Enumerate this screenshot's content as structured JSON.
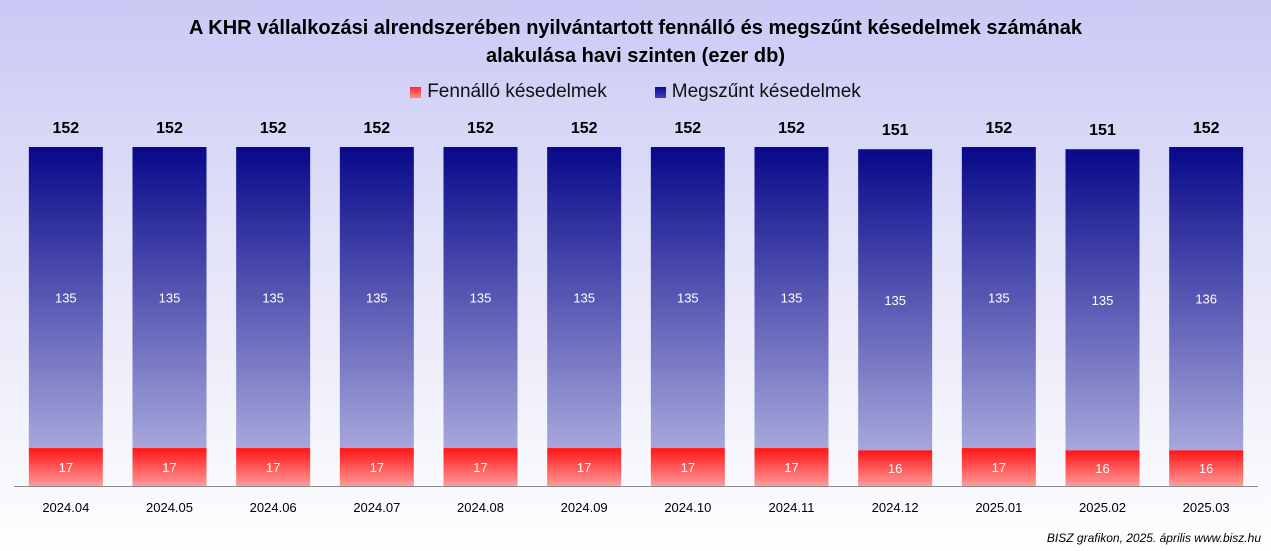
{
  "chart_data": {
    "type": "bar",
    "stacked": true,
    "title": "A KHR vállalkozási alrendszerében nyilvántartott fennálló és megszűnt késedelmek számának alakulása havi szinten (ezer db)",
    "title_lines": [
      "A KHR vállalkozási alrendszerében nyilvántartott fennálló és megszűnt késedelmek számának",
      "alakulása havi szinten (ezer db)"
    ],
    "categories": [
      "2024.04",
      "2024.05",
      "2024.06",
      "2024.07",
      "2024.08",
      "2024.09",
      "2024.10",
      "2024.11",
      "2024.12",
      "2025.01",
      "2025.02",
      "2025.03"
    ],
    "series": [
      {
        "name": "Fennálló késedelmek",
        "color": "#ff1f1f",
        "values": [
          17,
          17,
          17,
          17,
          17,
          17,
          17,
          17,
          16,
          17,
          16,
          16
        ]
      },
      {
        "name": "Megszűnt késedelmek",
        "color": "#0b0b8f",
        "values": [
          135,
          135,
          135,
          135,
          135,
          135,
          135,
          135,
          135,
          135,
          135,
          136
        ]
      }
    ],
    "totals": [
      152,
      152,
      152,
      152,
      152,
      152,
      152,
      152,
      151,
      152,
      151,
      152
    ],
    "legend_position": "top",
    "grid": false,
    "ylim": [
      0,
      152
    ]
  },
  "source_note": "BISZ grafikon, 2025. április www.bisz.hu"
}
